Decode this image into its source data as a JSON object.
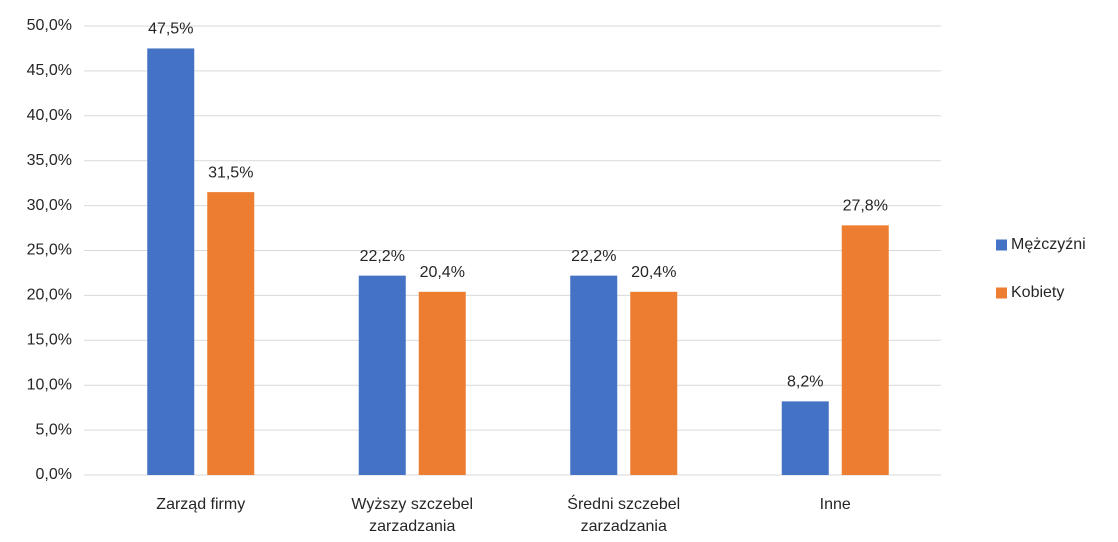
{
  "chart_data": {
    "type": "bar",
    "categories": [
      "Zarząd firmy",
      "Wyższy szczebel zarzadzania",
      "Średni szczebel zarzadzania",
      "Inne"
    ],
    "series": [
      {
        "name": "Mężczyźni",
        "color": "#4472c4",
        "values": [
          47.5,
          22.2,
          22.2,
          8.2
        ],
        "value_labels": [
          "47,5%",
          "22,2%",
          "22,2%",
          "8,2%"
        ]
      },
      {
        "name": "Kobiety",
        "color": "#ed7d31",
        "values": [
          31.5,
          20.4,
          20.4,
          27.8
        ],
        "value_labels": [
          "31,5%",
          "20,4%",
          "20,4%",
          "27,8%"
        ]
      }
    ],
    "ylim": [
      0,
      50
    ],
    "yticks": [
      {
        "value": 0,
        "label": "0,0%"
      },
      {
        "value": 5,
        "label": "5,0%"
      },
      {
        "value": 10,
        "label": "10,0%"
      },
      {
        "value": 15,
        "label": "15,0%"
      },
      {
        "value": 20,
        "label": "20,0%"
      },
      {
        "value": 25,
        "label": "25,0%"
      },
      {
        "value": 30,
        "label": "30,0%"
      },
      {
        "value": 35,
        "label": "35,0%"
      },
      {
        "value": 40,
        "label": "40,0%"
      },
      {
        "value": 45,
        "label": "45,0%"
      },
      {
        "value": 50,
        "label": "50,0%"
      }
    ],
    "grid": true,
    "legend": "right"
  }
}
